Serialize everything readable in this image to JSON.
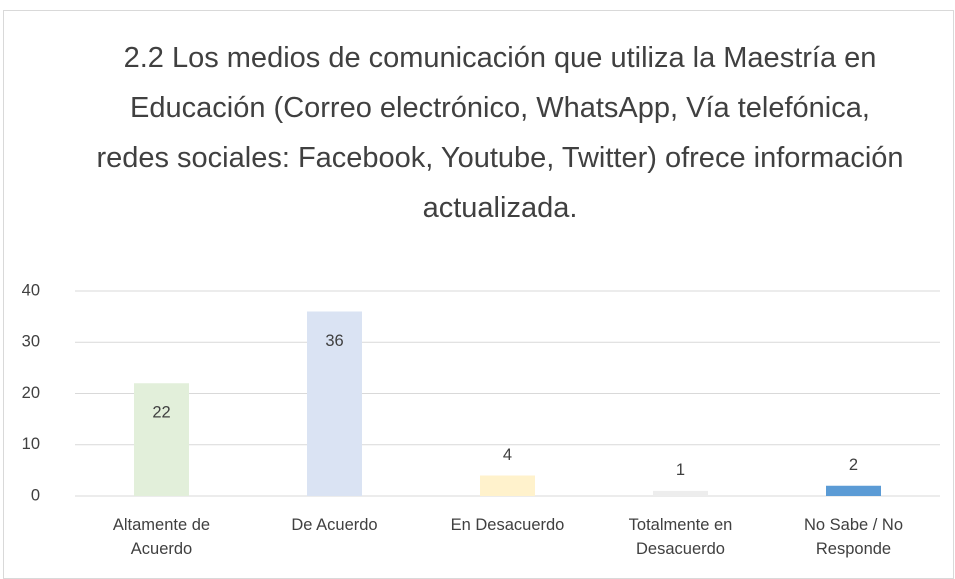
{
  "chart_data": {
    "type": "bar",
    "title": "2.2 Los medios de comunicación que utiliza la Maestría en Educación (Correo electrónico, WhatsApp, Vía telefónica, redes sociales: Facebook, Youtube, Twitter)  ofrece información actualizada.",
    "categories": [
      "Altamente de Acuerdo",
      "De Acuerdo",
      "En Desacuerdo",
      "Totalmente en Desacuerdo",
      "No Sabe / No Responde"
    ],
    "values": [
      22,
      36,
      4,
      1,
      2
    ],
    "colors": [
      "#e2efda",
      "#dae3f3",
      "#fff2cc",
      "#ededed",
      "#5b9bd5"
    ],
    "ylim": [
      0,
      40
    ],
    "yticks": [
      0,
      10,
      20,
      30,
      40
    ],
    "grid": true
  }
}
